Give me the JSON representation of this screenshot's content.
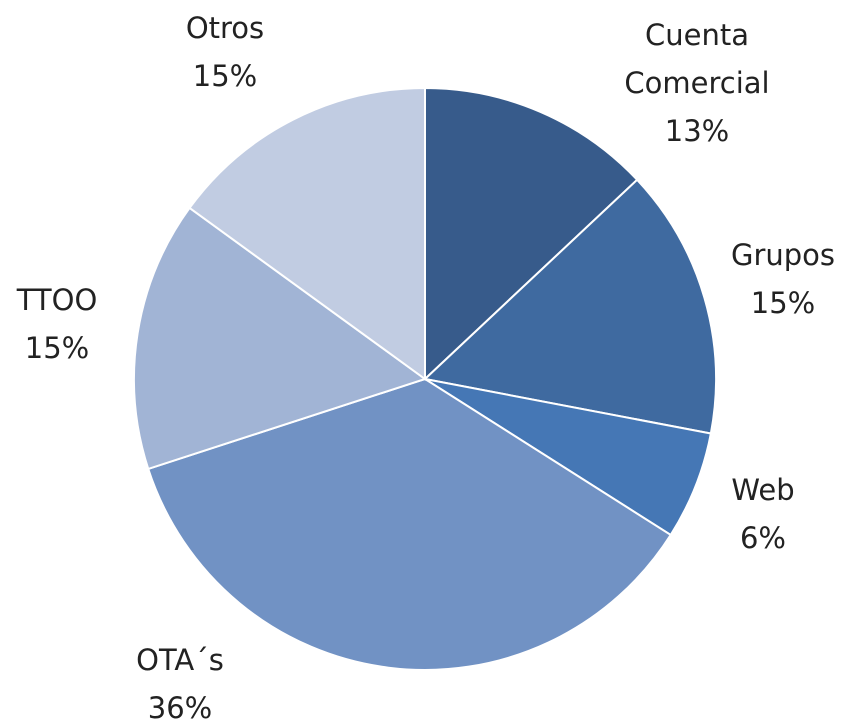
{
  "chart_data": {
    "type": "pie",
    "categories": [
      "Cuenta Comercial",
      "Grupos",
      "Web",
      "OTA´s",
      "TTOO",
      "Otros"
    ],
    "values": [
      13,
      15,
      6,
      36,
      15,
      15
    ],
    "value_labels": [
      "13%",
      "15%",
      "6%",
      "36%",
      "15%",
      "15%"
    ],
    "colors": [
      "#375b8b",
      "#3f6aa0",
      "#4577b5",
      "#7192c4",
      "#a1b4d5",
      "#c1cce2"
    ]
  }
}
